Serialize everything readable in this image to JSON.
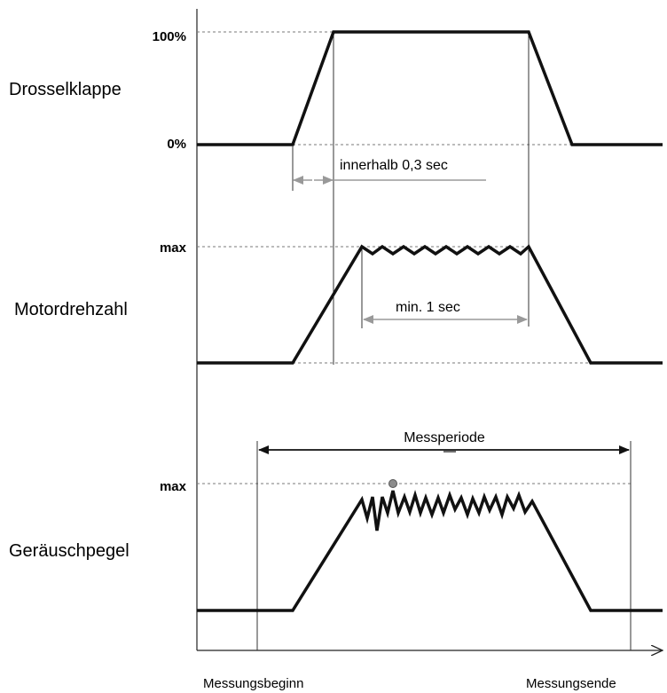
{
  "rows": {
    "throttle": {
      "label": "Drosselklappe",
      "tick_high": "100%",
      "tick_low": "0%"
    },
    "engine_speed": {
      "label": "Motordrehzahl",
      "tick_high": "max"
    },
    "noise": {
      "label": "Geräuschpegel",
      "tick_high": "max"
    }
  },
  "annotations": {
    "within": "innerhalb 0,3 sec",
    "min_duration": "min. 1 sec",
    "measure_period": "Messperiode"
  },
  "time_axis": {
    "start_label": "Messungsbeginn",
    "end_label": "Messungsende"
  }
}
